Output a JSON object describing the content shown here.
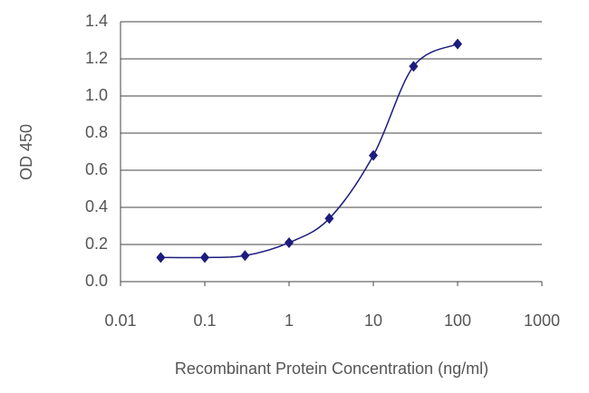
{
  "chart_data": {
    "type": "line",
    "log_x": true,
    "x_label": "Recombinant Protein Concentration (ng/ml)",
    "y_label": "OD 450",
    "x": [
      0.03,
      0.1,
      0.3,
      1,
      3,
      10,
      30,
      100
    ],
    "series": [
      {
        "color": "#1c1c7e",
        "values": [
          0.13,
          0.13,
          0.14,
          0.21,
          0.34,
          0.68,
          1.16,
          1.28
        ]
      }
    ],
    "xlim": [
      0.01,
      1000
    ],
    "xticks": [
      0.01,
      0.1,
      1,
      10,
      100,
      1000
    ],
    "ylim": [
      0,
      1.4
    ],
    "yticks": [
      {
        "value": 0,
        "label": "0.0"
      },
      0.2,
      0.4,
      0.6,
      0.8,
      {
        "value": 1,
        "label": "1.0"
      },
      1.2,
      1.4
    ],
    "grid": true
  }
}
